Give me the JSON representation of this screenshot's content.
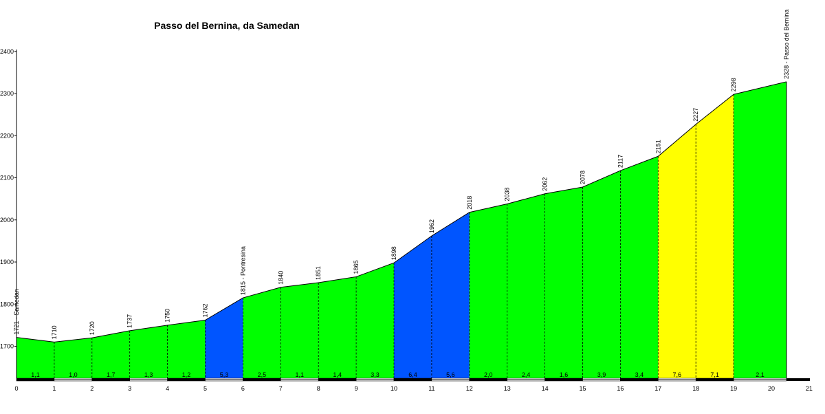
{
  "chart_data": {
    "type": "area",
    "title": "Passo del Bernina, da Samedan",
    "xlabel": "",
    "ylabel": "",
    "x_ticks": [
      "0",
      "1",
      "2",
      "3",
      "4",
      "5",
      "6",
      "7",
      "8",
      "9",
      "10",
      "11",
      "12",
      "13",
      "14",
      "15",
      "16",
      "17",
      "18",
      "19",
      "20",
      "21"
    ],
    "y_ticks": [
      "1700",
      "1800",
      "1900",
      "2000",
      "2100",
      "2200",
      "2300",
      "2400"
    ],
    "xlim": [
      0,
      21
    ],
    "ylim": [
      1620,
      2400
    ],
    "points": [
      {
        "x": 0,
        "y": 1721,
        "label": "1721 - Samedan"
      },
      {
        "x": 1,
        "y": 1710,
        "label": "1710"
      },
      {
        "x": 2,
        "y": 1720,
        "label": "1720"
      },
      {
        "x": 3,
        "y": 1737,
        "label": "1737"
      },
      {
        "x": 4,
        "y": 1750,
        "label": "1750"
      },
      {
        "x": 5,
        "y": 1762,
        "label": "1762"
      },
      {
        "x": 6,
        "y": 1815,
        "label": "1815 - Pontresina"
      },
      {
        "x": 7,
        "y": 1840,
        "label": "1840"
      },
      {
        "x": 8,
        "y": 1851,
        "label": "1851"
      },
      {
        "x": 9,
        "y": 1865,
        "label": "1865"
      },
      {
        "x": 10,
        "y": 1898,
        "label": "1898"
      },
      {
        "x": 11,
        "y": 1962,
        "label": "1962"
      },
      {
        "x": 12,
        "y": 2018,
        "label": "2018"
      },
      {
        "x": 13,
        "y": 2038,
        "label": "2038"
      },
      {
        "x": 14,
        "y": 2062,
        "label": "2062"
      },
      {
        "x": 15,
        "y": 2078,
        "label": "2078"
      },
      {
        "x": 16,
        "y": 2117,
        "label": "2117"
      },
      {
        "x": 17,
        "y": 2151,
        "label": "2151"
      },
      {
        "x": 18,
        "y": 2227,
        "label": "2227"
      },
      {
        "x": 19,
        "y": 2298,
        "label": "2298"
      },
      {
        "x": 20.4,
        "y": 2328,
        "label": "2328 - Passo del Bernina"
      }
    ],
    "segments": [
      {
        "from": 0,
        "to": 1,
        "gradient": "1,1",
        "color": "#00ff00"
      },
      {
        "from": 1,
        "to": 2,
        "gradient": "1,0",
        "color": "#00ff00"
      },
      {
        "from": 2,
        "to": 3,
        "gradient": "1,7",
        "color": "#00ff00"
      },
      {
        "from": 3,
        "to": 4,
        "gradient": "1,3",
        "color": "#00ff00"
      },
      {
        "from": 4,
        "to": 5,
        "gradient": "1,2",
        "color": "#00ff00"
      },
      {
        "from": 5,
        "to": 6,
        "gradient": "5,3",
        "color": "#0055ff"
      },
      {
        "from": 6,
        "to": 7,
        "gradient": "2,5",
        "color": "#00ff00"
      },
      {
        "from": 7,
        "to": 8,
        "gradient": "1,1",
        "color": "#00ff00"
      },
      {
        "from": 8,
        "to": 9,
        "gradient": "1,4",
        "color": "#00ff00"
      },
      {
        "from": 9,
        "to": 10,
        "gradient": "3,3",
        "color": "#00ff00"
      },
      {
        "from": 10,
        "to": 11,
        "gradient": "6,4",
        "color": "#0055ff"
      },
      {
        "from": 11,
        "to": 12,
        "gradient": "5,6",
        "color": "#0055ff"
      },
      {
        "from": 12,
        "to": 13,
        "gradient": "2,0",
        "color": "#00ff00"
      },
      {
        "from": 13,
        "to": 14,
        "gradient": "2,4",
        "color": "#00ff00"
      },
      {
        "from": 14,
        "to": 15,
        "gradient": "1,6",
        "color": "#00ff00"
      },
      {
        "from": 15,
        "to": 16,
        "gradient": "3,9",
        "color": "#00ff00"
      },
      {
        "from": 16,
        "to": 17,
        "gradient": "3,4",
        "color": "#00ff00"
      },
      {
        "from": 17,
        "to": 18,
        "gradient": "7,6",
        "color": "#ffff00"
      },
      {
        "from": 18,
        "to": 19,
        "gradient": "7,1",
        "color": "#ffff00"
      },
      {
        "from": 19,
        "to": 20.4,
        "gradient": "2,1",
        "color": "#00ff00"
      }
    ],
    "grid": false,
    "legend": "none"
  }
}
